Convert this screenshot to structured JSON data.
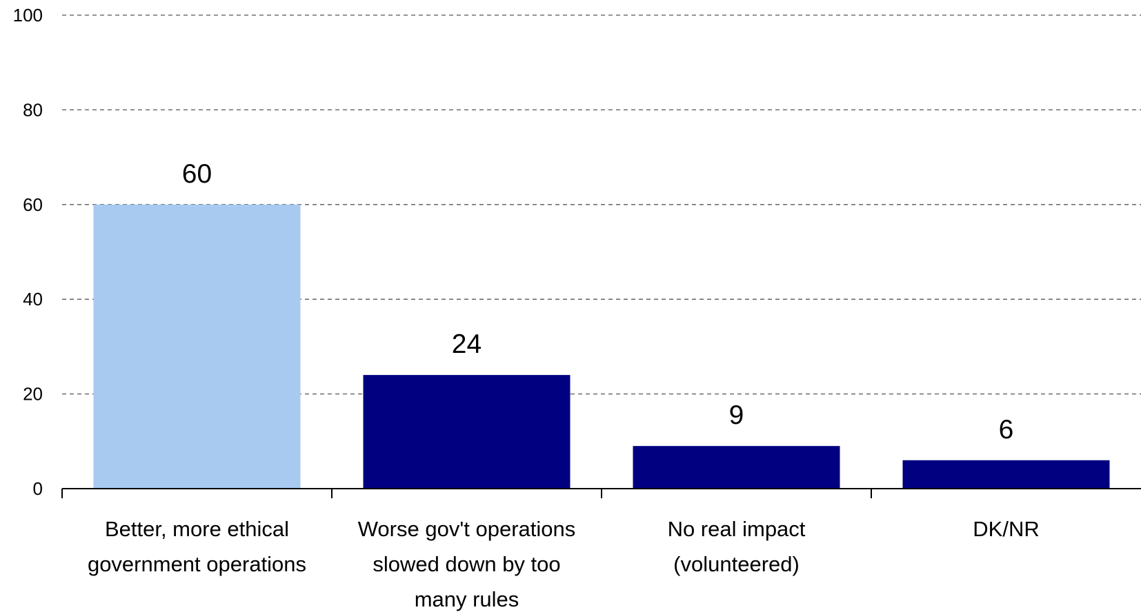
{
  "chart_data": {
    "type": "bar",
    "categories": [
      [
        "Better, more ethical",
        "government operations"
      ],
      [
        "Worse gov't operations",
        "slowed down by too",
        "many rules"
      ],
      [
        "No real impact",
        "(volunteered)"
      ],
      [
        "DK/NR"
      ]
    ],
    "values": [
      60,
      24,
      9,
      6
    ],
    "data_labels": [
      "60",
      "24",
      "9",
      "6"
    ],
    "bar_colors": [
      "#a9caf0",
      "#000080",
      "#000080",
      "#000080"
    ],
    "ylim": [
      0,
      100
    ],
    "yticks": [
      0,
      20,
      40,
      60,
      80,
      100
    ],
    "ytick_labels": [
      "0",
      "20",
      "40",
      "60",
      "80",
      "100"
    ],
    "grid": true,
    "legend": "none",
    "title": "",
    "xlabel": "",
    "ylabel": ""
  }
}
